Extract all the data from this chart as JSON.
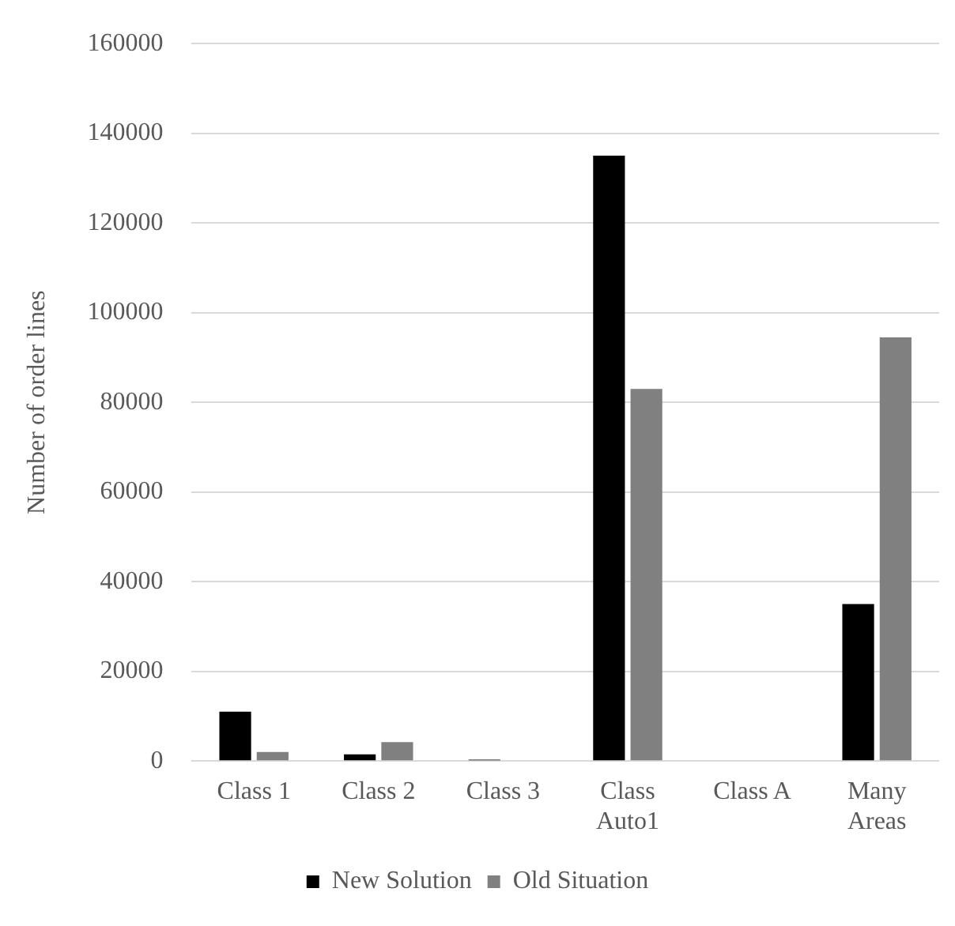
{
  "chart_data": {
    "type": "bar",
    "ylabel": "Number of order lines",
    "categories": [
      "Class 1",
      "Class 2",
      "Class 3",
      "Class Auto1",
      "Class A",
      "Many Areas"
    ],
    "series": [
      {
        "name": "New Solution",
        "color": "#000000",
        "values": [
          11000,
          1500,
          300,
          135000,
          0,
          35000
        ]
      },
      {
        "name": "Old Situation",
        "color": "#808080",
        "values": [
          2000,
          4200,
          0,
          83000,
          0,
          94500
        ]
      }
    ],
    "ylim": [
      0,
      160000
    ],
    "yticks": [
      0,
      20000,
      40000,
      60000,
      80000,
      100000,
      120000,
      140000,
      160000
    ],
    "grid": "y",
    "legend": "bottom"
  }
}
